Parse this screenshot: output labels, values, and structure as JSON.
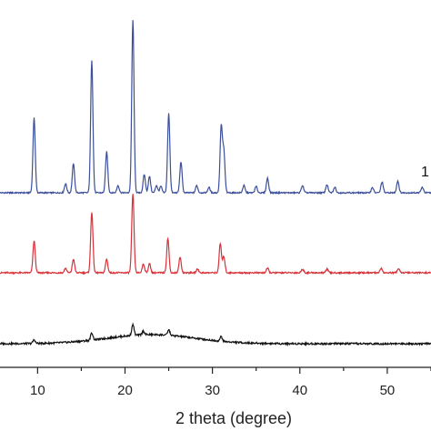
{
  "chart_data": {
    "type": "line",
    "xlabel": "2 theta (degree)",
    "ylabel": "",
    "xlim": [
      5.7,
      55
    ],
    "xticks": [
      10,
      20,
      30,
      40,
      50
    ],
    "grid": false,
    "series": [
      {
        "color": "#3b4f9a",
        "baseline": 100,
        "peaks": [
          {
            "x": 9.6,
            "h": 82
          },
          {
            "x": 13.2,
            "h": 10
          },
          {
            "x": 14.1,
            "h": 32
          },
          {
            "x": 16.2,
            "h": 146
          },
          {
            "x": 17.9,
            "h": 45
          },
          {
            "x": 19.2,
            "h": 8
          },
          {
            "x": 20.9,
            "h": 190
          },
          {
            "x": 22.2,
            "h": 20
          },
          {
            "x": 22.8,
            "h": 18
          },
          {
            "x": 23.6,
            "h": 8
          },
          {
            "x": 24.1,
            "h": 7
          },
          {
            "x": 25.0,
            "h": 87
          },
          {
            "x": 26.4,
            "h": 34
          },
          {
            "x": 28.2,
            "h": 8
          },
          {
            "x": 29.6,
            "h": 6
          },
          {
            "x": 31.0,
            "h": 72
          },
          {
            "x": 31.3,
            "h": 45
          },
          {
            "x": 33.6,
            "h": 8
          },
          {
            "x": 35.0,
            "h": 7
          },
          {
            "x": 36.3,
            "h": 16
          },
          {
            "x": 40.3,
            "h": 8
          },
          {
            "x": 43.1,
            "h": 9
          },
          {
            "x": 44.0,
            "h": 6
          },
          {
            "x": 48.3,
            "h": 6
          },
          {
            "x": 49.4,
            "h": 12
          },
          {
            "x": 51.2,
            "h": 13
          },
          {
            "x": 54.0,
            "h": 6
          }
        ]
      },
      {
        "color": "#d6333a",
        "baseline": 100,
        "peaks": [
          {
            "x": 9.6,
            "h": 35
          },
          {
            "x": 13.2,
            "h": 5
          },
          {
            "x": 14.1,
            "h": 15
          },
          {
            "x": 16.2,
            "h": 67
          },
          {
            "x": 17.9,
            "h": 15
          },
          {
            "x": 20.9,
            "h": 87
          },
          {
            "x": 22.1,
            "h": 10
          },
          {
            "x": 22.8,
            "h": 10
          },
          {
            "x": 24.9,
            "h": 38
          },
          {
            "x": 26.3,
            "h": 17
          },
          {
            "x": 28.3,
            "h": 4
          },
          {
            "x": 30.9,
            "h": 32
          },
          {
            "x": 31.3,
            "h": 18
          },
          {
            "x": 36.3,
            "h": 5
          },
          {
            "x": 40.3,
            "h": 4
          },
          {
            "x": 43.1,
            "h": 4
          },
          {
            "x": 49.3,
            "h": 5
          },
          {
            "x": 51.3,
            "h": 5
          }
        ]
      },
      {
        "color": "#111111",
        "baseline": 100,
        "peaks": [
          {
            "x": 9.6,
            "h": 4
          },
          {
            "x": 16.2,
            "h": 8
          },
          {
            "x": 20.9,
            "h": 12
          },
          {
            "x": 22.1,
            "h": 4
          },
          {
            "x": 25.0,
            "h": 6
          },
          {
            "x": 31.0,
            "h": 5
          }
        ]
      }
    ],
    "annotations": [
      {
        "text": "1",
        "series": 0
      }
    ]
  }
}
